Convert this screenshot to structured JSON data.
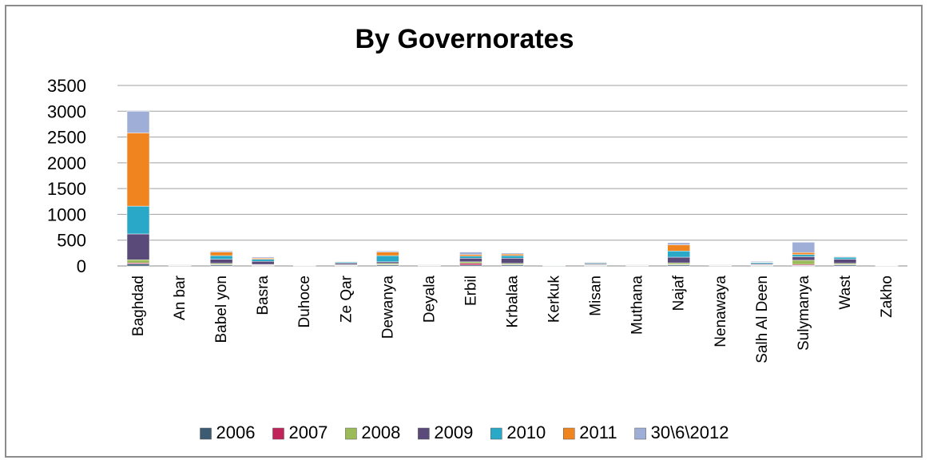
{
  "chart_data": {
    "type": "bar",
    "stacked": true,
    "title": "By Governorates",
    "xlabel": "",
    "ylabel": "",
    "ylim": [
      0,
      3500
    ],
    "yticks": [
      0,
      500,
      1000,
      1500,
      2000,
      2500,
      3000,
      3500
    ],
    "grid": true,
    "legend_position": "bottom",
    "categories": [
      "Baghdad",
      "An bar",
      "Babel yon",
      "Basra",
      "Duhoce",
      "Ze Qar",
      "Dewanya",
      "Deyala",
      "Erbil",
      "Krbalaa",
      "Kerkuk",
      "Misan",
      "Muthana",
      "Najaf",
      "Nenawaya",
      "Salh Al Deen",
      "Sulymanya",
      "Wast",
      "Zakho"
    ],
    "series": [
      {
        "name": "2006",
        "color": "#3d5a73",
        "values": [
          40,
          5,
          20,
          10,
          2,
          10,
          20,
          5,
          20,
          20,
          3,
          10,
          5,
          20,
          5,
          10,
          10,
          20,
          2
        ]
      },
      {
        "name": "2007",
        "color": "#c0245a",
        "values": [
          20,
          3,
          10,
          10,
          2,
          5,
          10,
          3,
          30,
          10,
          2,
          5,
          3,
          10,
          3,
          5,
          20,
          10,
          1
        ]
      },
      {
        "name": "2008",
        "color": "#9bbb59",
        "values": [
          60,
          5,
          20,
          10,
          3,
          10,
          20,
          5,
          30,
          20,
          3,
          10,
          5,
          30,
          5,
          10,
          80,
          20,
          2
        ]
      },
      {
        "name": "2009",
        "color": "#5a4a7a",
        "values": [
          500,
          10,
          80,
          60,
          5,
          30,
          30,
          10,
          70,
          100,
          5,
          20,
          10,
          110,
          10,
          20,
          70,
          80,
          3
        ]
      },
      {
        "name": "2010",
        "color": "#2aa8c8",
        "values": [
          540,
          5,
          70,
          40,
          3,
          20,
          120,
          5,
          40,
          50,
          5,
          15,
          5,
          120,
          5,
          20,
          40,
          40,
          2
        ]
      },
      {
        "name": "2011",
        "color": "#f0841e",
        "values": [
          1420,
          5,
          70,
          20,
          3,
          10,
          70,
          5,
          30,
          30,
          3,
          10,
          5,
          120,
          5,
          10,
          40,
          10,
          2
        ]
      },
      {
        "name": "30\\6\\2012",
        "color": "#9eaed6",
        "values": [
          420,
          5,
          20,
          20,
          2,
          5,
          20,
          5,
          50,
          20,
          2,
          10,
          5,
          40,
          5,
          15,
          200,
          10,
          1
        ]
      }
    ]
  }
}
